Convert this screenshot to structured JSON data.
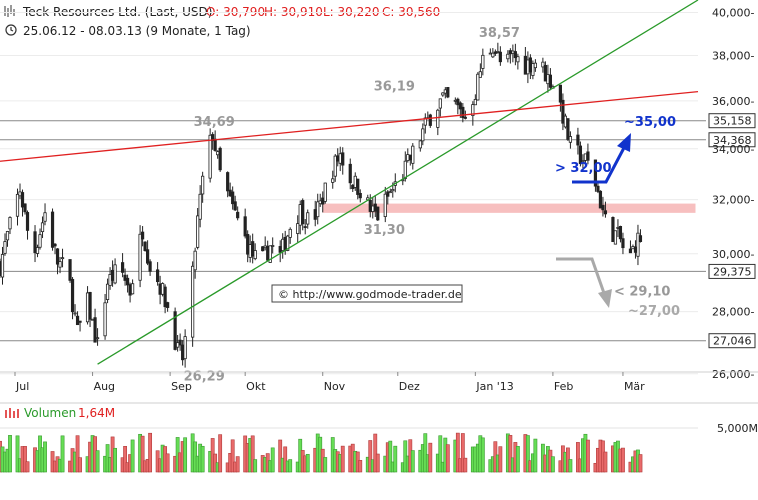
{
  "header": {
    "title": "Teck Resources Ltd. (Last, USD)",
    "ohlc": {
      "open": "O: 30,790",
      "high": "H: 30,910",
      "low": "L: 30,220",
      "close": "C: 30,560"
    },
    "range": "25.06.12 - 08.03.13 (9 Monate, 1 Tag)"
  },
  "watermark": "© http://www.godmode-trader.de",
  "colors": {
    "up": "#33cc33",
    "down": "#e45555",
    "trend_green": "#2a9a2a",
    "trend_red": "#e02020",
    "zone": "#f6b4b4",
    "blue": "#1133cc",
    "grey_label": "#999999"
  },
  "chart_data": {
    "type": "candlestick",
    "y_scale": "log",
    "ylim": [
      25.2,
      40.6
    ],
    "y_ticks": [
      {
        "v": 26,
        "label": "26,000-"
      },
      {
        "v": 28,
        "label": "28,000-"
      },
      {
        "v": 30,
        "label": "30,000-"
      },
      {
        "v": 32,
        "label": "32,000-"
      },
      {
        "v": 34,
        "label": "34,000-"
      },
      {
        "v": 36,
        "label": "36,000-"
      },
      {
        "v": 38,
        "label": "38,000-"
      },
      {
        "v": 40,
        "label": "40,000-"
      }
    ],
    "x_range": [
      "2012-06-25",
      "2013-03-08"
    ],
    "x_ticks": [
      {
        "d": "2012-07-01",
        "label": "Jul"
      },
      {
        "d": "2012-08-01",
        "label": "Aug"
      },
      {
        "d": "2012-09-01",
        "label": "Sep"
      },
      {
        "d": "2012-10-01",
        "label": "Okt"
      },
      {
        "d": "2012-11-01",
        "label": "Nov"
      },
      {
        "d": "2012-12-01",
        "label": "Dez"
      },
      {
        "d": "2013-01-01",
        "label": "Jan '13"
      },
      {
        "d": "2013-02-01",
        "label": "Feb"
      },
      {
        "d": "2013-03-01",
        "label": "Mär"
      }
    ],
    "path": [
      [
        "2012-06-25",
        29.6
      ],
      [
        "2012-07-03",
        32.4
      ],
      [
        "2012-07-08",
        29.8
      ],
      [
        "2012-07-13",
        31.5
      ],
      [
        "2012-07-18",
        29.7
      ],
      [
        "2012-07-22",
        29.4
      ],
      [
        "2012-07-26",
        27.3
      ],
      [
        "2012-07-30",
        28.3
      ],
      [
        "2012-08-03",
        26.9
      ],
      [
        "2012-08-07",
        29.0
      ],
      [
        "2012-08-12",
        29.5
      ],
      [
        "2012-08-16",
        28.7
      ],
      [
        "2012-08-21",
        30.9
      ],
      [
        "2012-08-24",
        29.6
      ],
      [
        "2012-08-28",
        28.9
      ],
      [
        "2012-09-01",
        27.9
      ],
      [
        "2012-09-04",
        26.7
      ],
      [
        "2012-09-06",
        26.5
      ],
      [
        "2012-09-09",
        28.2
      ],
      [
        "2012-09-12",
        31.2
      ],
      [
        "2012-09-15",
        33.5
      ],
      [
        "2012-09-18",
        34.6
      ],
      [
        "2012-09-21",
        33.0
      ],
      [
        "2012-09-25",
        31.9
      ],
      [
        "2012-09-29",
        31.0
      ],
      [
        "2012-10-03",
        30.1
      ],
      [
        "2012-10-07",
        29.6
      ],
      [
        "2012-10-11",
        30.3
      ],
      [
        "2012-10-15",
        29.9
      ],
      [
        "2012-10-19",
        31.0
      ],
      [
        "2012-10-23",
        31.6
      ],
      [
        "2012-10-27",
        31.1
      ],
      [
        "2012-10-31",
        31.8
      ],
      [
        "2012-11-04",
        33.0
      ],
      [
        "2012-11-08",
        33.8
      ],
      [
        "2012-11-12",
        32.8
      ],
      [
        "2012-11-16",
        32.4
      ],
      [
        "2012-11-20",
        31.6
      ],
      [
        "2012-11-23",
        31.4
      ],
      [
        "2012-11-27",
        32.1
      ],
      [
        "2012-12-02",
        32.8
      ],
      [
        "2012-12-06",
        33.6
      ],
      [
        "2012-12-11",
        34.7
      ],
      [
        "2012-12-15",
        35.6
      ],
      [
        "2012-12-19",
        36.1
      ],
      [
        "2012-12-24",
        35.8
      ],
      [
        "2012-12-28",
        35.3
      ],
      [
        "2013-01-01",
        36.4
      ],
      [
        "2013-01-04",
        37.8
      ],
      [
        "2013-01-08",
        38.5
      ],
      [
        "2013-01-12",
        37.4
      ],
      [
        "2013-01-16",
        38.0
      ],
      [
        "2013-01-21",
        37.6
      ],
      [
        "2013-01-26",
        37.8
      ],
      [
        "2013-01-30",
        37.0
      ],
      [
        "2013-02-02",
        36.7
      ],
      [
        "2013-02-05",
        35.4
      ],
      [
        "2013-02-08",
        34.1
      ],
      [
        "2013-02-12",
        33.7
      ],
      [
        "2013-02-16",
        33.3
      ],
      [
        "2013-02-19",
        32.3
      ],
      [
        "2013-02-22",
        31.2
      ],
      [
        "2013-02-25",
        30.8
      ],
      [
        "2013-02-28",
        30.5
      ],
      [
        "2013-03-03",
        29.6
      ],
      [
        "2013-03-06",
        30.4
      ],
      [
        "2013-03-08",
        30.56
      ]
    ],
    "h_lines": [
      {
        "v": 35.158,
        "label": "35,158",
        "boxed": true
      },
      {
        "v": 34.368,
        "label": "34,368",
        "boxed": true
      },
      {
        "v": 29.375,
        "label": "29,375",
        "boxed": true
      },
      {
        "v": 27.046,
        "label": "27,046",
        "boxed": true
      }
    ],
    "trendlines": [
      {
        "color": "green",
        "from": [
          "2012-08-03",
          26.3
        ],
        "to": [
          "2013-03-31",
          40.6
        ]
      },
      {
        "color": "red",
        "from": [
          "2012-06-25",
          33.5
        ],
        "to": [
          "2013-03-31",
          36.4
        ]
      }
    ],
    "zone": {
      "from": "2012-11-01",
      "to": "2013-03-30",
      "low": 31.5,
      "high": 31.85
    },
    "annotations": [
      {
        "text": "38,57",
        "d": "2013-01-08",
        "v": 38.57
      },
      {
        "text": "36,19",
        "d": "2012-11-27",
        "v": 36.19
      },
      {
        "text": "34,69",
        "d": "2012-09-16",
        "v": 34.69
      },
      {
        "text": "31,30",
        "d": "2012-11-23",
        "v": 31.3
      },
      {
        "text": "26,29",
        "d": "2012-09-12",
        "v": 26.29
      },
      {
        "text": "< 29,10",
        "d": "2013-03-03",
        "v": 29.1
      }
    ],
    "targets": [
      {
        "text": "> 32,00",
        "color": "blue"
      },
      {
        "text": "~35,00",
        "color": "blue"
      },
      {
        "text": "~27,00",
        "color": "grey"
      }
    ],
    "volume": {
      "label": "Volumen",
      "last": "1,64M",
      "y_tick": "5,000M-",
      "y_tick_value": 5.0,
      "max": 6.2
    }
  }
}
